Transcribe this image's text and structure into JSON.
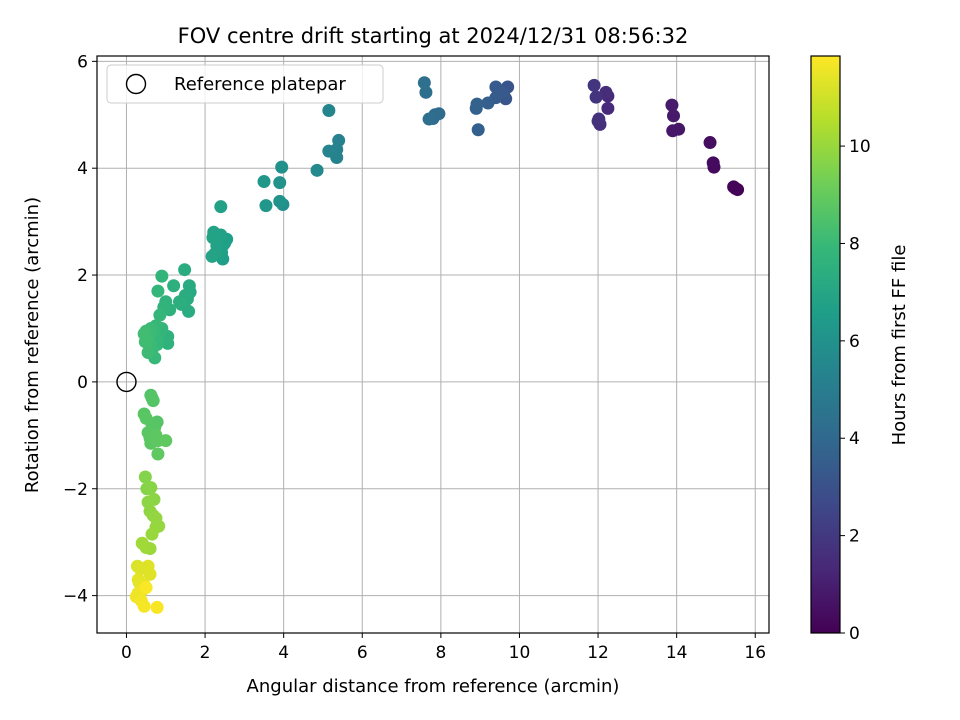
{
  "chart_data": {
    "type": "scatter",
    "title": "FOV centre drift starting at 2024/12/31 08:56:32",
    "xlabel": "Angular distance from reference (arcmin)",
    "ylabel": "Rotation from reference (arcmin)",
    "xlim": [
      -0.75,
      16.35
    ],
    "ylim": [
      -4.7,
      6.1
    ],
    "x_ticks": [
      0,
      2,
      4,
      6,
      8,
      10,
      12,
      14,
      16
    ],
    "y_ticks": [
      -4,
      -2,
      0,
      2,
      4,
      6
    ],
    "y_tick_labels": [
      "−4",
      "−2",
      "0",
      "2",
      "4",
      "6"
    ],
    "grid": true,
    "legend": {
      "position": "upper-left",
      "entries": [
        "Reference platepar"
      ]
    },
    "reference_point": {
      "x": 0,
      "y": 0
    },
    "colorbar": {
      "label": "Hours from first FF file",
      "colormap": "viridis",
      "min": 0,
      "max": 11.85,
      "ticks": [
        0,
        2,
        4,
        6,
        8,
        10
      ],
      "stops": [
        "#440154",
        "#482878",
        "#3e4989",
        "#31688e",
        "#26828e",
        "#1f9e89",
        "#35b779",
        "#6ece58",
        "#b5de2b",
        "#fde725"
      ]
    },
    "series": [
      {
        "points": [
          [
            15.55,
            3.6,
            0.05
          ],
          [
            15.5,
            3.62,
            0.1
          ],
          [
            15.45,
            3.65,
            0.15
          ],
          [
            14.95,
            4.02,
            0.3
          ],
          [
            14.93,
            4.1,
            0.35
          ],
          [
            14.85,
            4.48,
            0.45
          ],
          [
            14.05,
            4.73,
            0.7
          ],
          [
            13.9,
            4.7,
            0.75
          ],
          [
            13.92,
            4.98,
            0.8
          ],
          [
            13.88,
            5.18,
            0.85
          ],
          [
            12.25,
            5.12,
            1.4
          ],
          [
            12.25,
            5.35,
            1.45
          ],
          [
            12.2,
            5.42,
            1.5
          ],
          [
            12.05,
            4.82,
            1.6
          ],
          [
            12.0,
            4.88,
            1.65
          ],
          [
            12.02,
            4.92,
            1.7
          ],
          [
            11.95,
            5.33,
            1.8
          ],
          [
            11.9,
            5.55,
            1.85
          ],
          [
            9.7,
            5.52,
            3.1
          ],
          [
            9.65,
            5.3,
            3.2
          ],
          [
            9.6,
            5.38,
            3.25
          ],
          [
            9.55,
            5.42,
            3.3
          ],
          [
            9.4,
            5.52,
            3.4
          ],
          [
            9.4,
            5.32,
            3.45
          ],
          [
            9.2,
            5.22,
            3.55
          ],
          [
            8.95,
            4.72,
            3.6
          ],
          [
            8.9,
            5.12,
            3.65
          ],
          [
            8.92,
            5.2,
            3.7
          ],
          [
            7.95,
            5.02,
            4.1
          ],
          [
            7.85,
            5.0,
            4.15
          ],
          [
            7.8,
            4.93,
            4.2
          ],
          [
            7.7,
            4.92,
            4.25
          ],
          [
            7.62,
            5.42,
            4.3
          ],
          [
            7.58,
            5.6,
            4.35
          ],
          [
            5.4,
            4.52,
            5.2
          ],
          [
            5.35,
            4.35,
            5.25
          ],
          [
            5.35,
            4.2,
            5.3
          ],
          [
            5.15,
            4.32,
            5.35
          ],
          [
            5.15,
            5.08,
            5.4
          ],
          [
            4.85,
            3.96,
            5.6
          ],
          [
            3.98,
            3.32,
            5.9
          ],
          [
            3.95,
            4.02,
            5.95
          ],
          [
            3.9,
            3.73,
            6.0
          ],
          [
            3.9,
            3.38,
            6.05
          ],
          [
            3.55,
            3.3,
            6.2
          ],
          [
            3.5,
            3.75,
            6.25
          ],
          [
            2.55,
            2.67,
            6.6
          ],
          [
            2.5,
            2.6,
            6.62
          ],
          [
            2.45,
            2.3,
            6.65
          ],
          [
            2.45,
            2.55,
            6.68
          ],
          [
            2.42,
            2.42,
            6.7
          ],
          [
            2.4,
            2.75,
            6.72
          ],
          [
            2.4,
            3.28,
            6.74
          ],
          [
            2.35,
            2.72,
            6.76
          ],
          [
            2.3,
            2.55,
            6.78
          ],
          [
            2.25,
            2.4,
            6.8
          ],
          [
            2.22,
            2.8,
            6.82
          ],
          [
            2.2,
            2.7,
            6.84
          ],
          [
            2.18,
            2.35,
            6.86
          ],
          [
            1.62,
            1.68,
            7.2
          ],
          [
            1.6,
            1.8,
            7.22
          ],
          [
            1.58,
            1.32,
            7.25
          ],
          [
            1.55,
            1.55,
            7.27
          ],
          [
            1.5,
            1.62,
            7.3
          ],
          [
            1.48,
            2.1,
            7.32
          ],
          [
            1.4,
            1.45,
            7.35
          ],
          [
            1.35,
            1.5,
            7.4
          ],
          [
            1.2,
            1.8,
            7.48
          ],
          [
            1.1,
            1.35,
            7.55
          ],
          [
            1.05,
            0.85,
            7.6
          ],
          [
            1.05,
            0.72,
            7.63
          ],
          [
            1.0,
            1.5,
            7.66
          ],
          [
            0.95,
            1.4,
            7.7
          ],
          [
            0.9,
            1.98,
            7.74
          ],
          [
            0.9,
            1.0,
            7.77
          ],
          [
            0.85,
            0.9,
            7.8
          ],
          [
            0.85,
            1.25,
            7.82
          ],
          [
            0.8,
            1.7,
            7.85
          ],
          [
            0.78,
            0.7,
            7.88
          ],
          [
            0.75,
            0.8,
            7.9
          ],
          [
            0.75,
            1.05,
            7.92
          ],
          [
            0.72,
            0.45,
            7.95
          ],
          [
            0.7,
            0.95,
            7.98
          ],
          [
            0.65,
            0.6,
            8.0
          ],
          [
            0.62,
            1.0,
            8.03
          ],
          [
            0.6,
            0.7,
            8.06
          ],
          [
            0.58,
            0.9,
            8.08
          ],
          [
            0.55,
            0.55,
            8.1
          ],
          [
            0.52,
            0.8,
            8.12
          ],
          [
            0.5,
            0.95,
            8.14
          ],
          [
            0.48,
            0.75,
            8.16
          ],
          [
            0.45,
            0.9,
            8.18
          ],
          [
            0.62,
            -0.25,
            8.6
          ],
          [
            0.65,
            -0.3,
            8.62
          ],
          [
            0.68,
            -0.35,
            8.64
          ],
          [
            0.78,
            -0.75,
            8.66
          ],
          [
            0.72,
            -0.85,
            8.68
          ],
          [
            0.65,
            -0.8,
            8.7
          ],
          [
            0.45,
            -0.6,
            8.72
          ],
          [
            0.5,
            -0.68,
            8.74
          ],
          [
            0.55,
            -0.95,
            8.76
          ],
          [
            0.6,
            -1.05,
            8.78
          ],
          [
            0.62,
            -1.15,
            8.8
          ],
          [
            0.75,
            -1.0,
            8.82
          ],
          [
            0.8,
            -1.1,
            8.84
          ],
          [
            0.8,
            -1.35,
            8.86
          ],
          [
            1.0,
            -1.1,
            8.88
          ],
          [
            0.48,
            -1.78,
            9.6
          ],
          [
            0.52,
            -2.0,
            9.65
          ],
          [
            0.62,
            -1.98,
            9.7
          ],
          [
            0.7,
            -2.2,
            9.75
          ],
          [
            0.55,
            -2.25,
            9.78
          ],
          [
            0.6,
            -2.42,
            9.82
          ],
          [
            0.68,
            -2.5,
            9.86
          ],
          [
            0.75,
            -2.55,
            9.9
          ],
          [
            0.82,
            -2.7,
            9.93
          ],
          [
            0.75,
            -2.72,
            9.96
          ],
          [
            0.65,
            -2.85,
            10.0
          ],
          [
            0.6,
            -3.12,
            10.05
          ],
          [
            0.5,
            -3.1,
            10.1
          ],
          [
            0.4,
            -3.02,
            10.15
          ],
          [
            0.28,
            -3.45,
            11.2
          ],
          [
            0.35,
            -3.5,
            11.25
          ],
          [
            0.55,
            -3.45,
            11.28
          ],
          [
            0.6,
            -3.6,
            11.3
          ],
          [
            0.32,
            -3.75,
            11.35
          ],
          [
            0.3,
            -3.7,
            11.4
          ],
          [
            0.45,
            -3.8,
            11.45
          ],
          [
            0.4,
            -3.9,
            11.5
          ],
          [
            0.3,
            -3.95,
            11.55
          ],
          [
            0.25,
            -4.02,
            11.6
          ],
          [
            0.38,
            -4.1,
            11.65
          ],
          [
            0.45,
            -4.2,
            11.7
          ],
          [
            0.78,
            -4.22,
            11.75
          ],
          [
            0.5,
            -3.85,
            11.8
          ]
        ]
      }
    ]
  }
}
